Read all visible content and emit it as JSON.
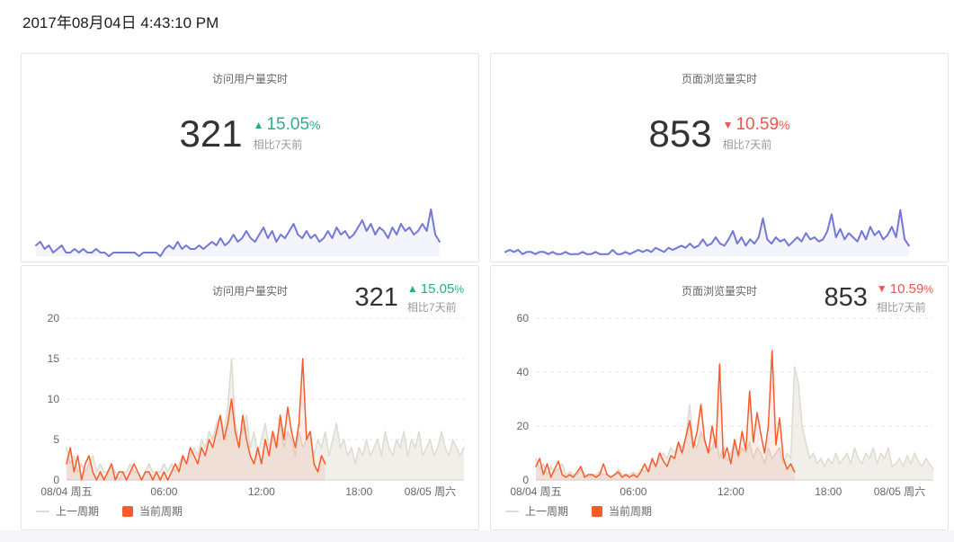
{
  "page": {
    "timestamp": "2017年08月04日 4:43:10 PM"
  },
  "colors": {
    "up": "#27b087",
    "down": "#f2524f",
    "current_series": "#f75b2b",
    "previous_series": "#dedbd0",
    "sparkline": "#7278d8"
  },
  "legend": {
    "previous": "上一周期",
    "current": "当前周期"
  },
  "panels": {
    "visitors_summary": {
      "title": "访问用户量实时",
      "value": "321",
      "arrow": "▲",
      "delta_value": "15.05",
      "delta_unit": "%",
      "compare_label": "相比7天前",
      "direction": "up"
    },
    "pageviews_summary": {
      "title": "页面浏览量实时",
      "value": "853",
      "arrow": "▼",
      "delta_value": "10.59",
      "delta_unit": "%",
      "compare_label": "相比7天前",
      "direction": "down"
    },
    "visitors_trend": {
      "title": "访问用户量实时",
      "value": "321",
      "arrow": "▲",
      "delta_value": "15.05",
      "delta_unit": "%",
      "compare_label": "相比7天前",
      "direction": "up"
    },
    "pageviews_trend": {
      "title": "页面浏览量实时",
      "value": "853",
      "arrow": "▼",
      "delta_value": "10.59",
      "delta_unit": "%",
      "compare_label": "相比7天前",
      "direction": "down"
    }
  },
  "chart_data": [
    {
      "type": "line",
      "kind": "sparkline",
      "title": "访问用户量实时",
      "y_max": 14,
      "x_count": 99,
      "grid": "off",
      "legend_position": "none",
      "series": [
        {
          "name": "访问用户量",
          "color": "#7278d8",
          "fill": "rgba(114,120,216,0.08)",
          "values": [
            3,
            4,
            2,
            3,
            1,
            2,
            3,
            1,
            1,
            2,
            1,
            2,
            1,
            1,
            2,
            1,
            1,
            0,
            1,
            1,
            1,
            1,
            1,
            1,
            0,
            1,
            1,
            1,
            1,
            0,
            2,
            3,
            2,
            4,
            2,
            3,
            2,
            2,
            3,
            2,
            3,
            4,
            3,
            5,
            3,
            4,
            6,
            4,
            5,
            7,
            5,
            4,
            6,
            8,
            5,
            7,
            4,
            6,
            5,
            7,
            9,
            6,
            5,
            7,
            5,
            6,
            4,
            5,
            7,
            5,
            8,
            6,
            7,
            5,
            6,
            8,
            10,
            7,
            9,
            6,
            8,
            7,
            5,
            8,
            6,
            9,
            7,
            8,
            6,
            7,
            9,
            7,
            13,
            6,
            4
          ]
        }
      ]
    },
    {
      "type": "line",
      "kind": "sparkline",
      "title": "页面浏览量实时",
      "y_max": 24,
      "x_count": 99,
      "grid": "off",
      "legend_position": "none",
      "series": [
        {
          "name": "页面浏览量",
          "color": "#7278d8",
          "fill": "rgba(114,120,216,0.08)",
          "values": [
            2,
            3,
            2,
            3,
            1,
            2,
            2,
            1,
            2,
            2,
            1,
            2,
            1,
            1,
            2,
            1,
            1,
            1,
            2,
            1,
            1,
            2,
            1,
            1,
            1,
            3,
            1,
            1,
            2,
            1,
            2,
            3,
            2,
            3,
            2,
            4,
            3,
            2,
            4,
            3,
            4,
            5,
            4,
            6,
            4,
            5,
            8,
            5,
            6,
            9,
            6,
            5,
            8,
            12,
            6,
            9,
            5,
            8,
            6,
            9,
            18,
            8,
            6,
            9,
            7,
            8,
            5,
            7,
            9,
            7,
            11,
            8,
            9,
            7,
            8,
            12,
            20,
            9,
            13,
            8,
            11,
            9,
            7,
            12,
            8,
            14,
            10,
            12,
            8,
            10,
            14,
            9,
            22,
            8,
            5
          ]
        }
      ]
    },
    {
      "type": "line",
      "kind": "trend",
      "title": "访问用户量实时",
      "x_labels": [
        "08/04 周五",
        "06:00",
        "12:00",
        "18:00",
        "08/05 周六"
      ],
      "x_label_idx": [
        0,
        26,
        52,
        78,
        97
      ],
      "x_count": 107,
      "y_ticks": [
        0,
        5,
        10,
        15,
        20
      ],
      "y_max": 20,
      "grid": "dashed-horizontal",
      "legend_position": "bottom-left",
      "series": [
        {
          "name": "上一周期",
          "color": "#dedbd0",
          "fill": "rgba(222,219,208,0.45)",
          "values": [
            4,
            2,
            3,
            1,
            2,
            1,
            2,
            3,
            1,
            2,
            1,
            1,
            2,
            1,
            0,
            1,
            1,
            2,
            1,
            1,
            0,
            1,
            2,
            1,
            1,
            1,
            2,
            1,
            2,
            1,
            2,
            3,
            2,
            3,
            4,
            3,
            5,
            4,
            6,
            5,
            7,
            8,
            6,
            9,
            15,
            7,
            5,
            6,
            8,
            4,
            6,
            3,
            5,
            7,
            4,
            6,
            5,
            7,
            4,
            6,
            5,
            3,
            6,
            4,
            5,
            6,
            3,
            5,
            4,
            6,
            3,
            5,
            7,
            4,
            5,
            3,
            4,
            2,
            4,
            3,
            5,
            3,
            4,
            5,
            3,
            6,
            4,
            3,
            5,
            4,
            6,
            3,
            5,
            4,
            6,
            3,
            4,
            5,
            3,
            4,
            6,
            4,
            3,
            5,
            4,
            3,
            4
          ]
        },
        {
          "name": "当前周期",
          "color": "#f75b2b",
          "fill": "rgba(247,91,43,0.10)",
          "values": [
            2,
            4,
            1,
            3,
            0,
            2,
            3,
            1,
            0,
            1,
            0,
            1,
            2,
            0,
            1,
            1,
            0,
            1,
            2,
            1,
            0,
            1,
            1,
            0,
            1,
            0,
            1,
            0,
            1,
            2,
            1,
            3,
            2,
            4,
            3,
            2,
            4,
            3,
            5,
            4,
            6,
            8,
            5,
            7,
            10,
            6,
            4,
            8,
            5,
            3,
            2,
            4,
            2,
            5,
            3,
            6,
            4,
            8,
            5,
            9,
            6,
            4,
            7,
            15,
            5,
            6,
            2,
            1,
            3,
            2
          ]
        }
      ]
    },
    {
      "type": "line",
      "kind": "trend",
      "title": "页面浏览量实时",
      "x_labels": [
        "08/04 周五",
        "06:00",
        "12:00",
        "18:00",
        "08/05 周六"
      ],
      "x_label_idx": [
        0,
        26,
        52,
        78,
        97
      ],
      "x_count": 107,
      "y_ticks": [
        0,
        20,
        40,
        60
      ],
      "y_max": 60,
      "grid": "dashed-horizontal",
      "legend_position": "bottom-left",
      "series": [
        {
          "name": "上一周期",
          "color": "#dedbd0",
          "fill": "rgba(222,219,208,0.45)",
          "values": [
            8,
            4,
            6,
            2,
            5,
            3,
            4,
            6,
            2,
            3,
            2,
            2,
            4,
            2,
            1,
            2,
            2,
            3,
            2,
            2,
            1,
            2,
            4,
            2,
            2,
            2,
            3,
            2,
            4,
            3,
            5,
            7,
            5,
            8,
            10,
            8,
            12,
            10,
            14,
            12,
            16,
            28,
            14,
            12,
            18,
            14,
            10,
            12,
            16,
            8,
            12,
            7,
            10,
            14,
            8,
            12,
            10,
            14,
            8,
            12,
            10,
            6,
            12,
            8,
            10,
            12,
            6,
            10,
            8,
            42,
            36,
            20,
            14,
            8,
            10,
            6,
            8,
            5,
            8,
            6,
            10,
            6,
            8,
            10,
            6,
            12,
            8,
            6,
            10,
            8,
            12,
            6,
            10,
            8,
            12,
            5,
            6,
            8,
            5,
            9,
            6,
            10,
            7,
            5,
            8,
            6,
            4
          ]
        },
        {
          "name": "当前周期",
          "color": "#f75b2b",
          "fill": "rgba(247,91,43,0.10)",
          "values": [
            5,
            8,
            2,
            6,
            1,
            4,
            7,
            2,
            1,
            2,
            1,
            3,
            5,
            1,
            2,
            2,
            1,
            2,
            6,
            2,
            1,
            2,
            3,
            1,
            2,
            1,
            2,
            1,
            3,
            6,
            3,
            8,
            5,
            10,
            7,
            5,
            9,
            8,
            14,
            10,
            16,
            22,
            12,
            18,
            28,
            15,
            10,
            20,
            12,
            43,
            8,
            12,
            6,
            15,
            9,
            18,
            11,
            33,
            14,
            25,
            17,
            10,
            20,
            48,
            13,
            23,
            8,
            4,
            6,
            3
          ]
        }
      ]
    }
  ]
}
